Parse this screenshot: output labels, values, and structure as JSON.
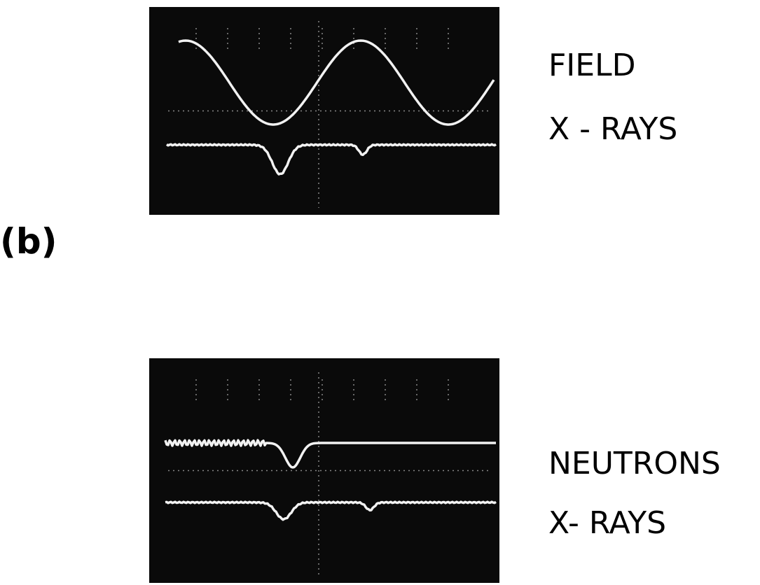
{
  "panel_label": "(b)",
  "top_scope": {
    "labels": [
      "FIELD",
      "X - RAYS"
    ]
  },
  "bottom_scope": {
    "labels": [
      "NEUTRONS",
      "X- RAYS"
    ]
  }
}
